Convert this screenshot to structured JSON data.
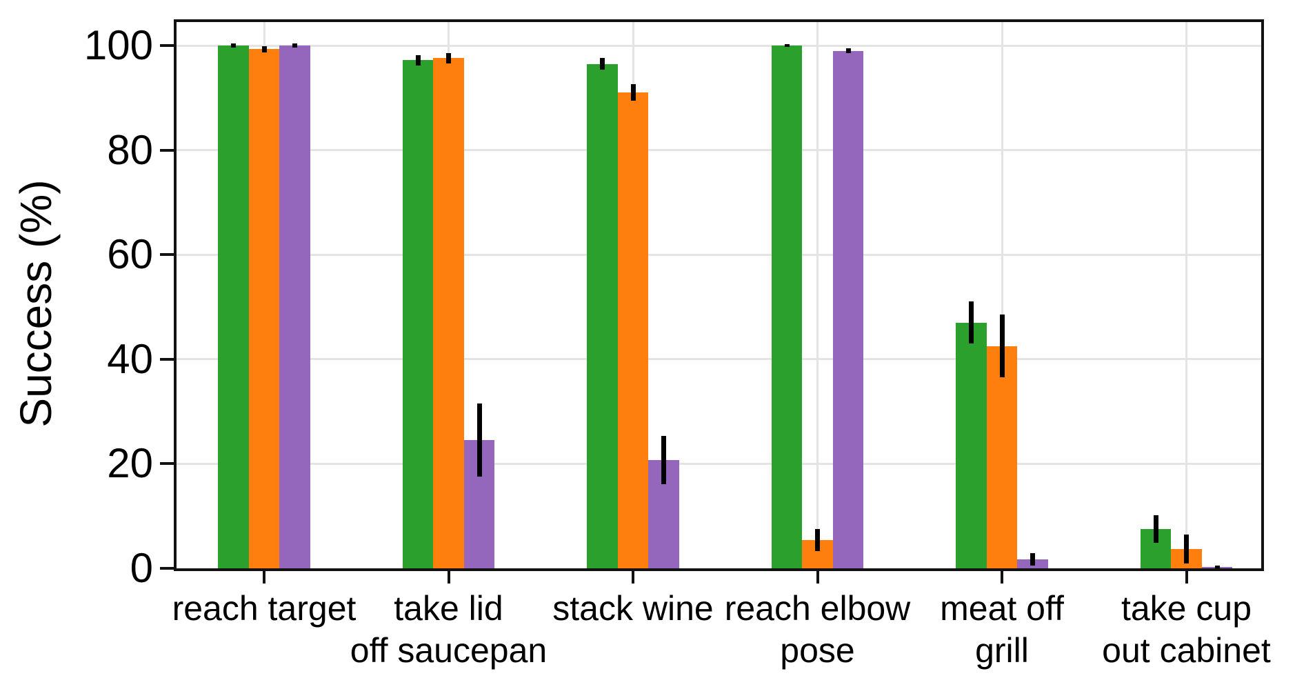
{
  "chart_data": {
    "type": "bar",
    "title": "",
    "xlabel": "",
    "ylabel": "Success (%)",
    "ylim": [
      0,
      104.5
    ],
    "yticks": [
      0,
      20,
      40,
      60,
      80,
      100
    ],
    "grid": "horizontal and vertical light gray gridlines",
    "legend_position": "none",
    "background_color": "#ffffff",
    "gridline_color": "#e4e4e4",
    "spine_color": "#121212",
    "error_bar_color": "#000000",
    "categories": [
      "reach target",
      "take lid off saucepan",
      "stack wine",
      "reach elbow pose",
      "meat off grill",
      "take cup out cabinet"
    ],
    "category_label_lines": [
      [
        "reach target"
      ],
      [
        "take lid",
        "off saucepan"
      ],
      [
        "stack wine"
      ],
      [
        "reach elbow",
        "pose"
      ],
      [
        "meat off",
        "grill"
      ],
      [
        "take cup",
        "out cabinet"
      ]
    ],
    "series": [
      {
        "name": "green",
        "color": "#2ca02c",
        "values": [
          100,
          97.2,
          96.5,
          100,
          47,
          7.5
        ],
        "errors": [
          0.4,
          1.0,
          1.1,
          0.3,
          4.0,
          2.6
        ]
      },
      {
        "name": "orange",
        "color": "#ff7f0e",
        "values": [
          99.3,
          97.6,
          91,
          5.4,
          42.5,
          3.7
        ],
        "errors": [
          0.6,
          1.0,
          1.6,
          2.1,
          6.0,
          2.8
        ]
      },
      {
        "name": "purple",
        "color": "#9467bd",
        "values": [
          100,
          24.5,
          20.7,
          99,
          1.7,
          0.2
        ],
        "errors": [
          0.4,
          7.0,
          4.6,
          0.5,
          1.2,
          0.3
        ]
      }
    ]
  }
}
